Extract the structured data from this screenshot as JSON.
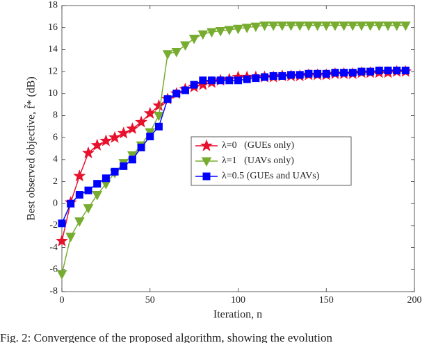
{
  "chart_data": {
    "type": "line",
    "xlabel": "Iteration, n",
    "ylabel": "Best observed objective, f̃* (dB)",
    "caption": "Fig. 2: Convergence of the proposed algorithm, showing the evolution",
    "x": [
      0,
      5,
      10,
      15,
      20,
      25,
      30,
      35,
      40,
      45,
      50,
      55,
      60,
      65,
      70,
      75,
      80,
      85,
      90,
      95,
      100,
      105,
      110,
      115,
      120,
      125,
      130,
      135,
      140,
      145,
      150,
      155,
      160,
      165,
      170,
      175,
      180,
      185,
      190,
      195
    ],
    "series": [
      {
        "name": "λ=0   (GUEs only)",
        "color": "#e8112d",
        "marker": "star",
        "values": [
          -3.4,
          0.1,
          2.5,
          4.6,
          5.3,
          5.7,
          6.0,
          6.4,
          6.8,
          7.4,
          8.2,
          8.9,
          9.5,
          10.0,
          10.4,
          10.6,
          10.8,
          11.0,
          11.2,
          11.3,
          11.5,
          11.5,
          11.5,
          11.5,
          11.5,
          11.6,
          11.6,
          11.6,
          11.7,
          11.7,
          11.7,
          11.8,
          11.8,
          11.8,
          11.9,
          11.9,
          11.9,
          11.9,
          12.0,
          12.0
        ]
      },
      {
        "name": "λ=1   (UAVs only)",
        "color": "#77ac30",
        "marker": "triangle-down",
        "values": [
          -6.4,
          -3.0,
          -1.6,
          -0.4,
          0.8,
          1.8,
          2.8,
          3.7,
          4.4,
          5.3,
          6.5,
          8.0,
          13.6,
          13.8,
          14.4,
          15.0,
          15.4,
          15.6,
          15.7,
          15.8,
          15.9,
          16.0,
          16.1,
          16.2,
          16.2,
          16.2,
          16.2,
          16.2,
          16.2,
          16.2,
          16.2,
          16.2,
          16.2,
          16.2,
          16.2,
          16.2,
          16.2,
          16.2,
          16.2,
          16.2
        ]
      },
      {
        "name": "λ=0.5 (GUEs and UAVs)",
        "color": "#0000ff",
        "marker": "square",
        "values": [
          -1.8,
          0.0,
          0.8,
          1.2,
          1.8,
          2.3,
          2.9,
          3.4,
          4.0,
          5.1,
          6.1,
          7.0,
          9.5,
          10.0,
          10.3,
          10.8,
          11.2,
          11.2,
          11.2,
          11.2,
          11.2,
          11.3,
          11.4,
          11.5,
          11.6,
          11.6,
          11.7,
          11.7,
          11.8,
          11.8,
          11.8,
          11.9,
          11.9,
          11.9,
          12.0,
          12.0,
          12.1,
          12.1,
          12.1,
          12.1
        ]
      }
    ],
    "xlim": [
      0,
      200
    ],
    "xticks": [
      0,
      50,
      100,
      150,
      200
    ],
    "ylim": [
      -8,
      18
    ],
    "yticks": [
      -8,
      -6,
      -4,
      -2,
      0,
      2,
      4,
      6,
      8,
      10,
      12,
      14,
      16,
      18
    ],
    "grid": false,
    "legend": "center-right"
  }
}
